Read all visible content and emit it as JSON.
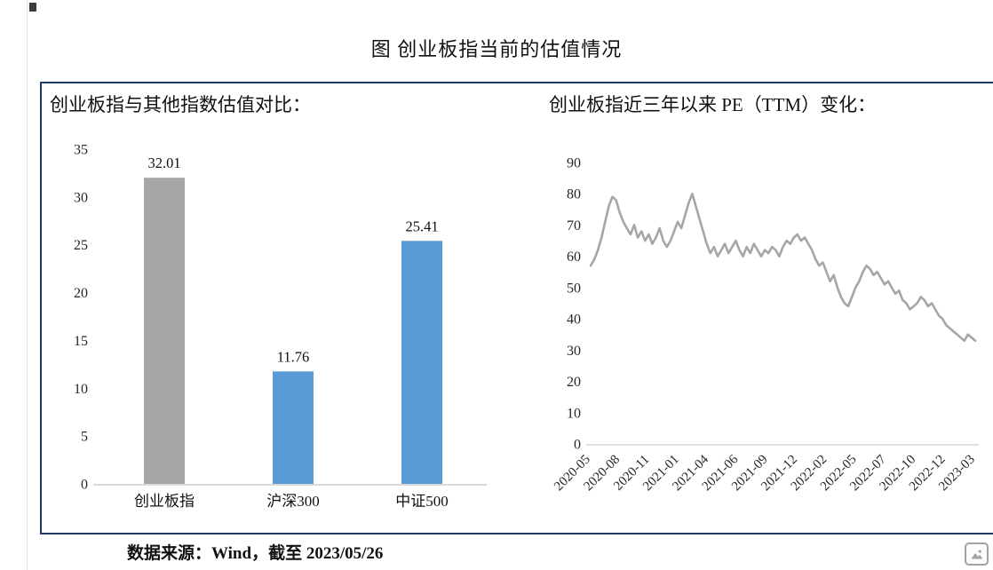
{
  "page": {
    "title": "图 创业板指当前的估值情况",
    "source_note": "数据来源：Wind，截至 2023/05/26"
  },
  "colors": {
    "frame_border": "#1f3864",
    "bar_gray": "#a6a6a6",
    "bar_blue": "#5b9bd5",
    "line_gray": "#a6a6a6",
    "axis_line": "#d9d9d9"
  },
  "icons": {
    "corner": "image-icon"
  },
  "chart_data": [
    {
      "type": "bar",
      "title": "创业板指与其他指数估值对比：",
      "categories": [
        "创业板指",
        "沪深300",
        "中证500"
      ],
      "values": [
        32.01,
        11.76,
        25.41
      ],
      "data_labels": [
        "32.01",
        "11.76",
        "25.41"
      ],
      "bar_colors": [
        "#a6a6a6",
        "#5b9bd5",
        "#5b9bd5"
      ],
      "xlabel": "",
      "ylabel": "",
      "ylim": [
        0,
        35
      ],
      "yticks": [
        0,
        5,
        10,
        15,
        20,
        25,
        30,
        35
      ],
      "grid": false,
      "legend": "none"
    },
    {
      "type": "line",
      "title": "创业板指近三年以来 PE（TTM）变化：",
      "xlabel": "",
      "ylabel": "",
      "ylim": [
        0,
        90
      ],
      "yticks": [
        0,
        10,
        20,
        30,
        40,
        50,
        60,
        70,
        80,
        90
      ],
      "xticklabels": [
        "2020-05",
        "2020-08",
        "2020-11",
        "2021-01",
        "2021-04",
        "2021-06",
        "2021-09",
        "2021-12",
        "2022-02",
        "2022-05",
        "2022-07",
        "2022-10",
        "2022-12",
        "2023-03"
      ],
      "line_color": "#a6a6a6",
      "grid": false,
      "legend": "none",
      "series": [
        {
          "name": "PE(TTM)",
          "values": [
            57,
            59,
            62,
            66,
            71,
            76,
            79,
            78,
            74,
            71,
            69,
            67,
            70,
            66,
            68,
            65,
            67,
            64,
            66,
            69,
            65,
            63,
            65,
            68,
            71,
            69,
            73,
            77,
            80,
            76,
            72,
            68,
            64,
            61,
            63,
            60,
            62,
            64,
            61,
            63,
            65,
            62,
            60,
            63,
            61,
            64,
            62,
            60,
            62,
            61,
            63,
            62,
            60,
            63,
            65,
            64,
            66,
            67,
            65,
            66,
            64,
            62,
            59,
            57,
            58,
            55,
            52,
            54,
            50,
            47,
            45,
            44,
            47,
            50,
            52,
            55,
            57,
            56,
            54,
            55,
            53,
            51,
            52,
            50,
            48,
            49,
            46,
            45,
            43,
            44,
            45,
            47,
            46,
            44,
            45,
            43,
            41,
            40,
            38,
            37,
            36,
            35,
            34,
            33,
            35,
            34,
            33
          ]
        }
      ]
    }
  ]
}
